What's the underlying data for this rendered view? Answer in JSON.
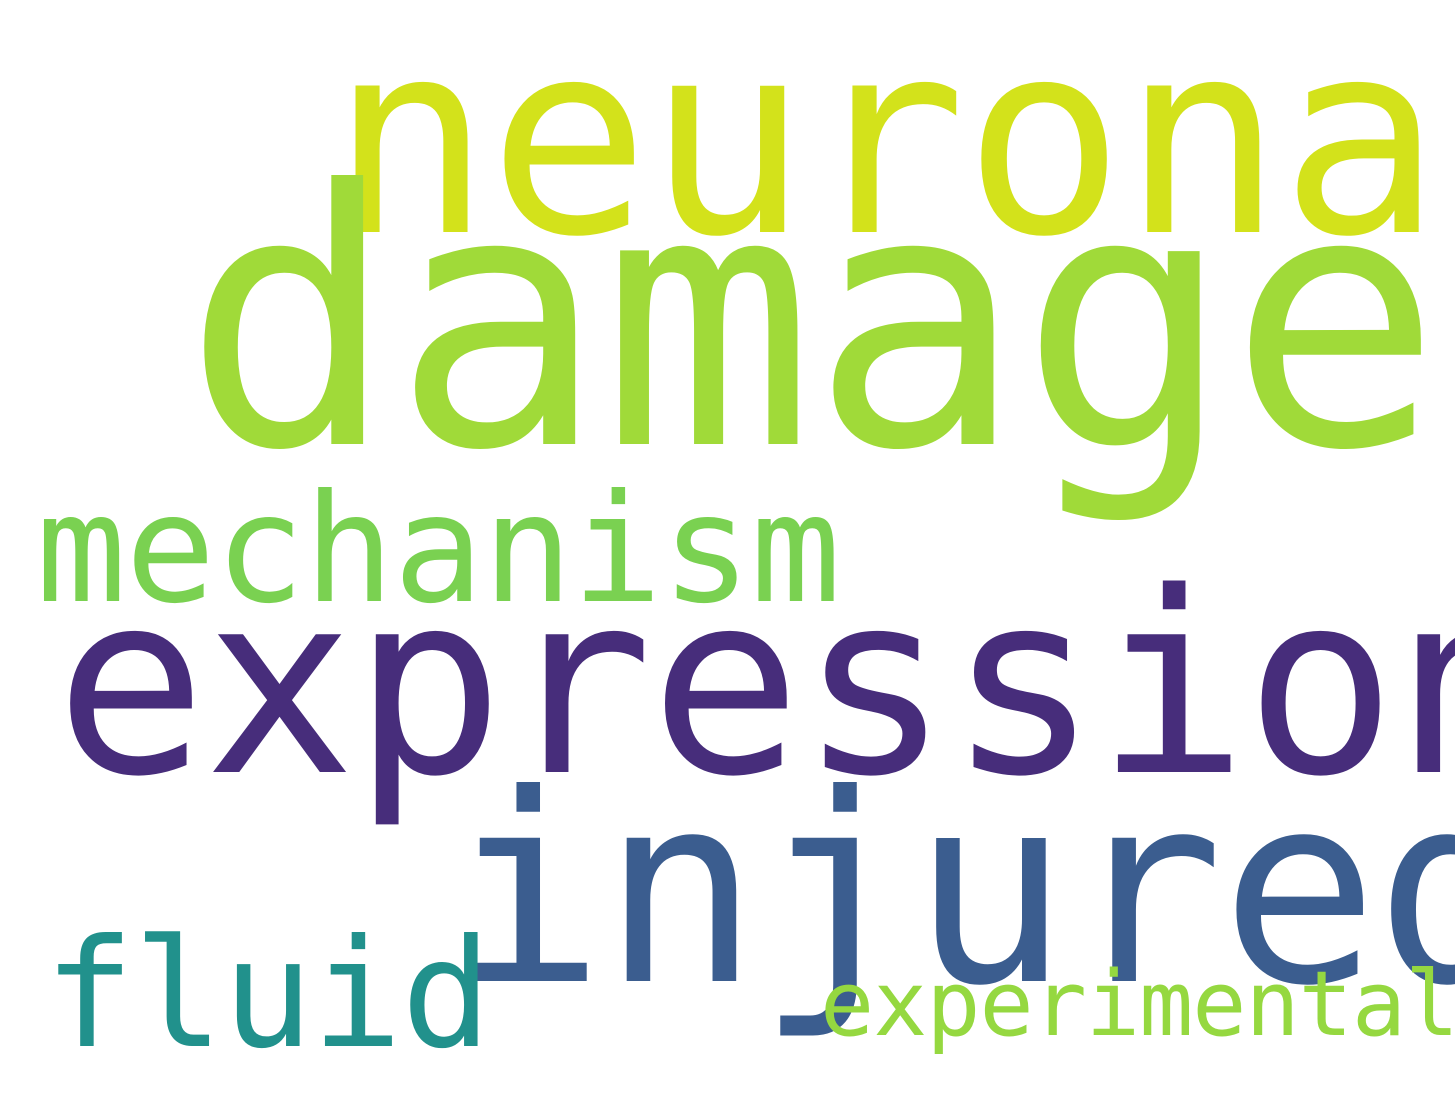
{
  "words": {
    "neuronal": {
      "text": "neuronal",
      "color": "#d3e21b"
    },
    "damage": {
      "text": "damage",
      "color": "#a0da39"
    },
    "mechanism": {
      "text": "mechanism",
      "color": "#7ad151"
    },
    "expression": {
      "text": "expression",
      "color": "#472d7b"
    },
    "injured": {
      "text": "injured",
      "color": "#3b5d8f"
    },
    "fluid": {
      "text": "fluid",
      "color": "#21918c"
    },
    "experimental": {
      "text": "experimental",
      "color": "#95d840"
    }
  }
}
